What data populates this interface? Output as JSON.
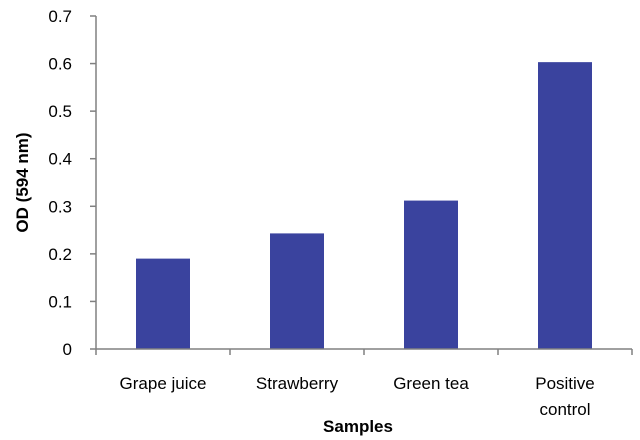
{
  "chart_data": {
    "type": "bar",
    "categories": [
      [
        "Grape juice"
      ],
      [
        "Strawberry"
      ],
      [
        "Green tea"
      ],
      [
        "Positive",
        "control"
      ]
    ],
    "values": [
      0.19,
      0.243,
      0.312,
      0.603
    ],
    "xlabel": "Samples",
    "ylabel": "OD (594 nm)",
    "ylim": [
      0,
      0.7
    ],
    "yticks": [
      "0",
      "0.1",
      "0.2",
      "0.3",
      "0.4",
      "0.5",
      "0.6",
      "0.7"
    ],
    "grid": false,
    "legend": "none",
    "bar_color": "#3a439e",
    "axis_color": "#808080"
  }
}
